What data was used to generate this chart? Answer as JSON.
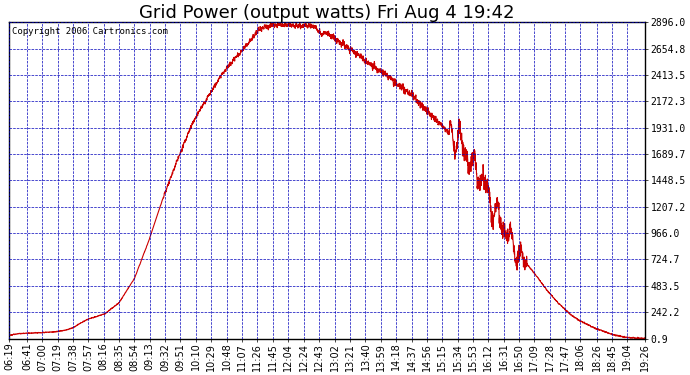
{
  "title": "Grid Power (output watts) Fri Aug 4 19:42",
  "copyright": "Copyright 2006 Cartronics.com",
  "line_color": "#cc0000",
  "bg_color": "#ffffff",
  "plot_bg_color": "#ffffff",
  "grid_color": "#0000bb",
  "ytick_labels": [
    "0.9",
    "242.2",
    "483.5",
    "724.7",
    "966.0",
    "1207.2",
    "1448.5",
    "1689.7",
    "1931.0",
    "2172.3",
    "2413.5",
    "2654.8",
    "2896.0"
  ],
  "ytick_values": [
    0.9,
    242.2,
    483.5,
    724.7,
    966.0,
    1207.2,
    1448.5,
    1689.7,
    1931.0,
    2172.3,
    2413.5,
    2654.8,
    2896.0
  ],
  "ymin": 0.9,
  "ymax": 2896.0,
  "xtick_labels": [
    "06:19",
    "06:41",
    "07:00",
    "07:19",
    "07:38",
    "07:57",
    "08:16",
    "08:35",
    "08:54",
    "09:13",
    "09:32",
    "09:51",
    "10:10",
    "10:29",
    "10:48",
    "11:07",
    "11:26",
    "11:45",
    "12:04",
    "12:24",
    "12:43",
    "13:02",
    "13:21",
    "13:40",
    "13:59",
    "14:18",
    "14:37",
    "14:56",
    "15:15",
    "15:34",
    "15:53",
    "16:12",
    "16:31",
    "16:50",
    "17:09",
    "17:28",
    "17:47",
    "18:06",
    "18:26",
    "18:45",
    "19:04",
    "19:26"
  ],
  "title_fontsize": 13,
  "axis_fontsize": 7,
  "copyright_fontsize": 6.5
}
